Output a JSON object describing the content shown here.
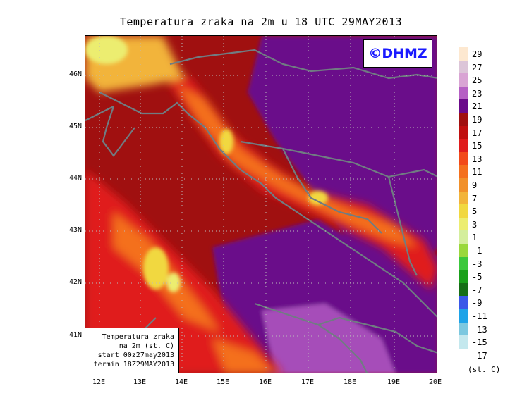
{
  "title": "Temperatura zraka na 2m u 18 UTC 29MAY2013",
  "copyright": "©DHMZ",
  "infobox": [
    "Temperatura zraka",
    "na 2m (st. C)",
    "start 00z27may2013",
    "termin 18Z29MAY2013"
  ],
  "lat_labels": [
    "46N",
    "45N",
    "44N",
    "43N",
    "42N",
    "41N"
  ],
  "lon_labels": [
    "12E",
    "13E",
    "14E",
    "15E",
    "16E",
    "17E",
    "18E",
    "19E",
    "20E"
  ],
  "legend_labels": [
    "29",
    "27",
    "25",
    "23",
    "21",
    "19",
    "17",
    "15",
    "13",
    "11",
    "9",
    "7",
    "5",
    "3",
    "1",
    "-1",
    "-3",
    "-5",
    "-7",
    "-9",
    "-11",
    "-13",
    "-15",
    "-17"
  ],
  "legend_colors": [
    "#fde8d0",
    "#dcc5d8",
    "#d9a4d4",
    "#b55fc4",
    "#6b0a8a",
    "#a01010",
    "#c01010",
    "#e01c1c",
    "#f24a1a",
    "#f4701e",
    "#f1902a",
    "#f2b43a",
    "#f1d840",
    "#eced70",
    "#d4ee9c",
    "#9ad83c",
    "#3cc83c",
    "#1aa01a",
    "#166e16",
    "#3a58e8",
    "#1ea3e8",
    "#7cc8e0",
    "#c4e8ee",
    "#ffffff"
  ],
  "units": "(st. C)"
}
